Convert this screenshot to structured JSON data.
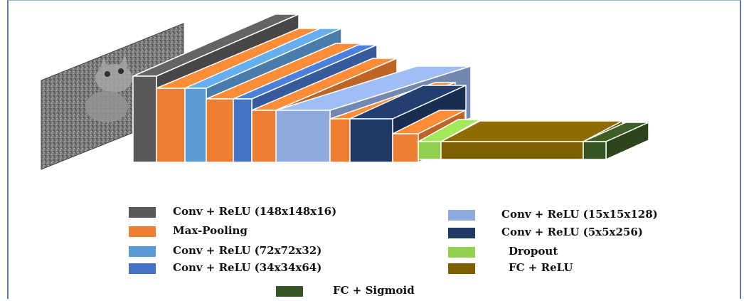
{
  "colors": {
    "conv148": "#595959",
    "maxpool": "#ED7D31",
    "conv72": "#5B9BD5",
    "conv34": "#4472C4",
    "conv15": "#8FAADC",
    "conv5": "#1F3864",
    "dropout": "#92D050",
    "fc_relu": "#7F6000",
    "fc_sigmoid": "#375623"
  },
  "input_image": {
    "icon": "cat-photo-grayscale"
  },
  "legend": [
    {
      "label": "Conv + ReLU (148x148x16)",
      "color": "#595959"
    },
    {
      "label": "Max-Pooling",
      "color": "#ED7D31"
    },
    {
      "label": "Conv + ReLU (72x72x32)",
      "color": "#5B9BD5"
    },
    {
      "label": "Conv + ReLU (34x34x64)",
      "color": "#4472C4"
    },
    {
      "label": "Conv + ReLU (15x15x128)",
      "color": "#8FAADC"
    },
    {
      "label": "Conv + ReLU (5x5x256)",
      "color": "#1F3864"
    },
    {
      "label": "Dropout",
      "color": "#92D050"
    },
    {
      "label": "FC + ReLU",
      "color": "#7F6000"
    },
    {
      "label": "FC + Sigmoid",
      "color": "#375623"
    }
  ]
}
